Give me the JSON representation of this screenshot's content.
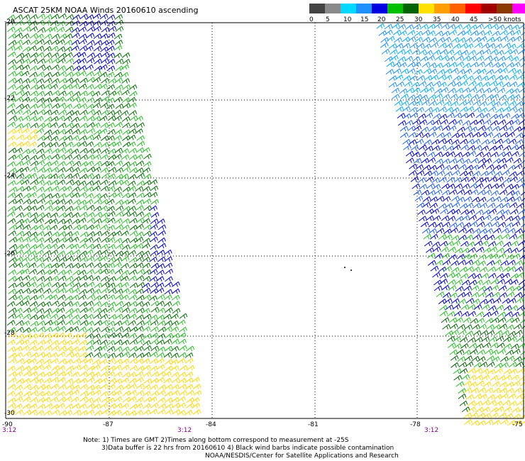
{
  "title": "ASCAT 25KM NOAA Winds 20160610 ascending",
  "legend": {
    "labels": [
      "0",
      "5",
      "10",
      "15",
      "20",
      "25",
      "30",
      "35",
      "40",
      "45",
      ">50 knots"
    ],
    "colors": [
      "#444444",
      "#8a8a8a",
      "#00d8ff",
      "#1e90ff",
      "#0000e0",
      "#00c000",
      "#006400",
      "#ffe000",
      "#ffa000",
      "#ff6000",
      "#ff0000",
      "#a00000",
      "#8a3a00",
      "#ff00ff",
      "#8000c0"
    ]
  },
  "latitudes": [
    "-20",
    "-22",
    "-24",
    "-26",
    "-28",
    "-30"
  ],
  "longitudes": [
    "-90",
    "-87",
    "-84",
    "-81",
    "-78",
    "-75"
  ],
  "times": [
    "3:12",
    "3:12",
    "3:12"
  ],
  "notes": [
    "Note: 1) Times are GMT 2)Times along bottom correspond to measurement at -25S",
    "3)Data buffer is 22 hrs from 20160610 4) Black wind barbs indicate possible contamination",
    "NOAA/NESDIS/Center for Satellite Applications and Research"
  ]
}
